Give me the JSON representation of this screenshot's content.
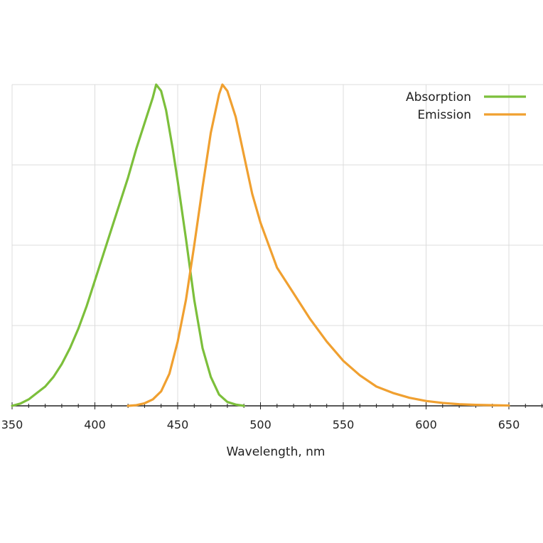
{
  "chart_data": {
    "type": "line",
    "title": "",
    "xlabel": "Wavelength, nm",
    "ylabel": "",
    "xlim": [
      350,
      670
    ],
    "ylim": [
      0,
      1
    ],
    "x_ticks": [
      350,
      400,
      450,
      500,
      550,
      600,
      650
    ],
    "y_grid": [
      0,
      0.25,
      0.5,
      0.75,
      1.0
    ],
    "grid": true,
    "legend_position": "top-right",
    "series": [
      {
        "name": "Absorption",
        "color": "#7cbf3b",
        "points": [
          [
            350,
            0.0
          ],
          [
            355,
            0.007
          ],
          [
            360,
            0.02
          ],
          [
            365,
            0.04
          ],
          [
            370,
            0.06
          ],
          [
            375,
            0.09
          ],
          [
            380,
            0.13
          ],
          [
            385,
            0.18
          ],
          [
            390,
            0.24
          ],
          [
            395,
            0.31
          ],
          [
            400,
            0.39
          ],
          [
            405,
            0.47
          ],
          [
            410,
            0.55
          ],
          [
            415,
            0.63
          ],
          [
            420,
            0.71
          ],
          [
            425,
            0.8
          ],
          [
            430,
            0.88
          ],
          [
            435,
            0.96
          ],
          [
            437,
            1.0
          ],
          [
            440,
            0.98
          ],
          [
            443,
            0.92
          ],
          [
            447,
            0.8
          ],
          [
            450,
            0.7
          ],
          [
            455,
            0.52
          ],
          [
            460,
            0.33
          ],
          [
            465,
            0.18
          ],
          [
            470,
            0.09
          ],
          [
            475,
            0.035
          ],
          [
            480,
            0.012
          ],
          [
            485,
            0.004
          ],
          [
            490,
            0.0
          ]
        ]
      },
      {
        "name": "Emission",
        "color": "#f0a030",
        "points": [
          [
            420,
            0.0
          ],
          [
            425,
            0.002
          ],
          [
            430,
            0.008
          ],
          [
            435,
            0.02
          ],
          [
            440,
            0.045
          ],
          [
            445,
            0.1
          ],
          [
            450,
            0.2
          ],
          [
            455,
            0.33
          ],
          [
            460,
            0.5
          ],
          [
            465,
            0.68
          ],
          [
            470,
            0.85
          ],
          [
            475,
            0.97
          ],
          [
            477,
            1.0
          ],
          [
            480,
            0.98
          ],
          [
            485,
            0.9
          ],
          [
            490,
            0.78
          ],
          [
            495,
            0.66
          ],
          [
            500,
            0.57
          ],
          [
            510,
            0.43
          ],
          [
            520,
            0.35
          ],
          [
            530,
            0.27
          ],
          [
            540,
            0.2
          ],
          [
            550,
            0.14
          ],
          [
            560,
            0.095
          ],
          [
            570,
            0.06
          ],
          [
            580,
            0.04
          ],
          [
            590,
            0.025
          ],
          [
            600,
            0.015
          ],
          [
            610,
            0.009
          ],
          [
            620,
            0.005
          ],
          [
            630,
            0.003
          ],
          [
            640,
            0.002
          ],
          [
            650,
            0.001
          ]
        ]
      }
    ]
  }
}
